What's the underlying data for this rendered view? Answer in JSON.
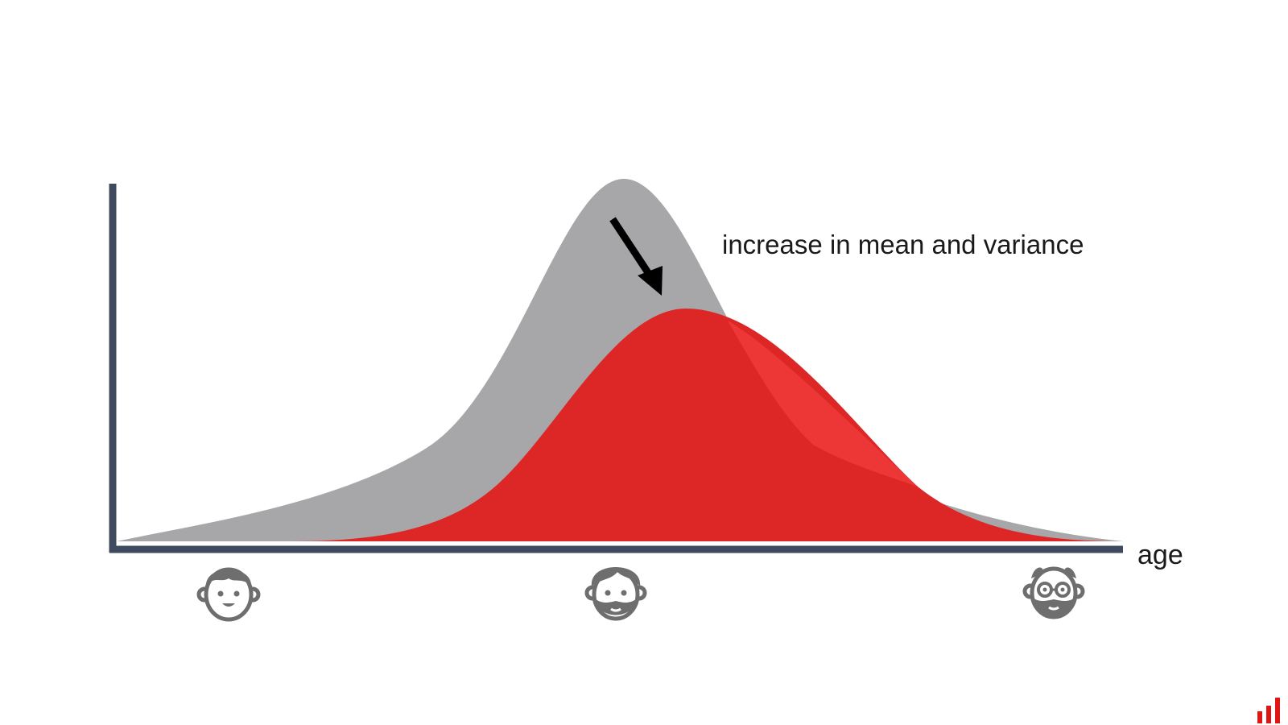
{
  "diagram": {
    "annotation": "increase in mean and variance",
    "x_axis_label": "age",
    "colors": {
      "axis": "#3f4a5f",
      "before_curve": "#a7a7a9",
      "after_curve": "#dd2626",
      "after_curve_overlap": "#f03a3a",
      "arrow": "#000000",
      "face_icon": "#6e6e6e",
      "logo": "#e01616"
    },
    "icons": [
      {
        "name": "young-face-icon",
        "stage": "young"
      },
      {
        "name": "adult-bearded-face-icon",
        "stage": "adult"
      },
      {
        "name": "elder-face-icon",
        "stage": "elderly"
      }
    ],
    "logo_icon": "bar-chart-logo-icon"
  }
}
